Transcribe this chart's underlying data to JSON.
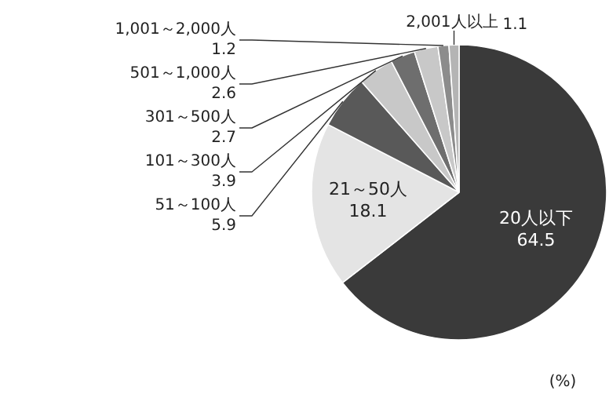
{
  "chart_data": {
    "type": "pie",
    "categories": [
      "20人以下",
      "21～50人",
      "51～100人",
      "101～300人",
      "301～500人",
      "501～1,000人",
      "1,001～2,000人",
      "2,001人以上"
    ],
    "values": [
      64.5,
      18.1,
      5.9,
      3.9,
      2.7,
      2.6,
      1.2,
      1.1
    ],
    "colors": [
      "#3a3a3a",
      "#e4e4e4",
      "#595959",
      "#c8c8c8",
      "#6e6e6e",
      "#c8c8c8",
      "#8c8c8c",
      "#b4b4b4"
    ],
    "data_labels": true,
    "annotations": [
      "(%)"
    ]
  }
}
